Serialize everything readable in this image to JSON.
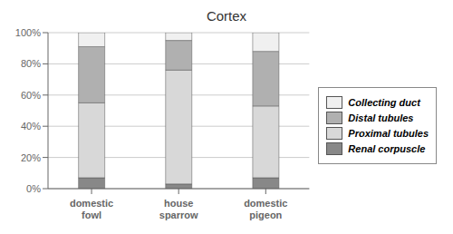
{
  "chart_data": {
    "type": "bar",
    "title": "Cortex",
    "stacked": true,
    "grid": true,
    "legend": "right",
    "categories": [
      "domestic\nfowl",
      "house\nsparrow",
      "domestic\npigeon"
    ],
    "series": [
      {
        "name": "Renal corpuscle",
        "color": "#888888",
        "values": [
          7,
          3,
          7
        ]
      },
      {
        "name": "Proximal tubules",
        "color": "#d8d8d8",
        "values": [
          48,
          73,
          46
        ]
      },
      {
        "name": "Distal tubules",
        "color": "#b0b0b0",
        "values": [
          36,
          19,
          35
        ]
      },
      {
        "name": "Collecting duct",
        "color": "#f0f0f0",
        "values": [
          9,
          5,
          12
        ]
      }
    ],
    "ylim": [
      0,
      100
    ],
    "yticks": [
      {
        "value": 0,
        "label": "0%"
      },
      {
        "value": 20,
        "label": "20%"
      },
      {
        "value": 40,
        "label": "40%"
      },
      {
        "value": 60,
        "label": "60%"
      },
      {
        "value": 80,
        "label": "80%"
      },
      {
        "value": 100,
        "label": "100%"
      }
    ]
  }
}
